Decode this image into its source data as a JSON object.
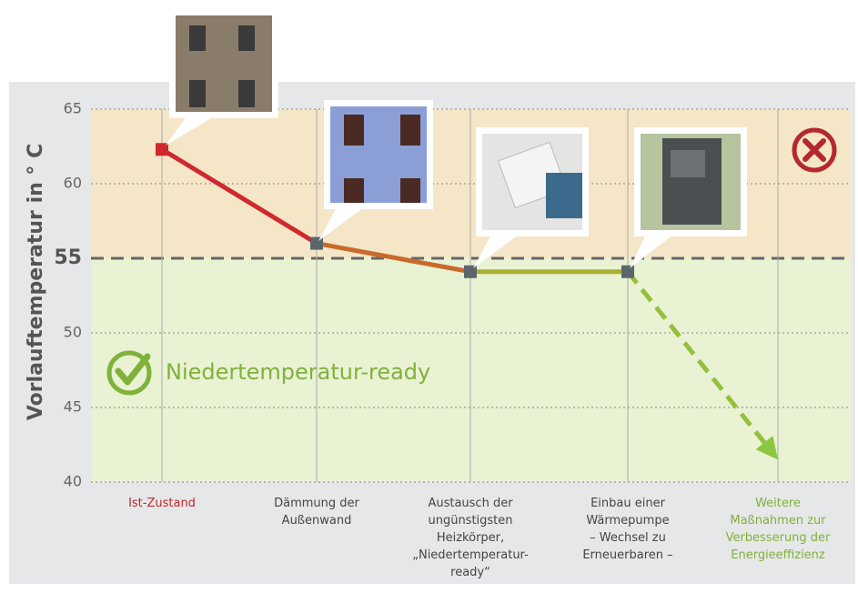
{
  "chart_data": {
    "type": "line",
    "y_label": "Vorlauftemperatur in ° C",
    "categories": [
      "Ist-Zustand",
      "Dämmung der\nAußenwand",
      "Austausch der\nungünstigsten\nHeizkörper,\n„Niedertemperatur-\nready“",
      "Einbau einer\nWärmepumpe\n– Wechsel zu\nErneuerbaren –",
      "Weitere\nMaßnahmen zur\nVerbesserung der\nEnergieeffizienz"
    ],
    "category_label_colors": [
      "#c0282d",
      "#444444",
      "#444444",
      "#444444",
      "#7fb23a"
    ],
    "values": [
      62.3,
      56,
      54.1,
      54.1,
      41.5
    ],
    "point_colors": [
      "#d0282d",
      "#c96a2b",
      "#a9b02f",
      "#93c03a",
      "#8dc63f"
    ],
    "marker_colors": [
      "#d0282d",
      "#5b666b",
      "#5b666b",
      "#5b666b",
      "#8dc63f"
    ],
    "dashed_from": 3,
    "ylim": [
      40,
      65
    ],
    "yticks": [
      40,
      45,
      50,
      55,
      60,
      65
    ],
    "reference_line": 55,
    "annotation": "Niedertemperatur-ready",
    "grid": true
  }
}
